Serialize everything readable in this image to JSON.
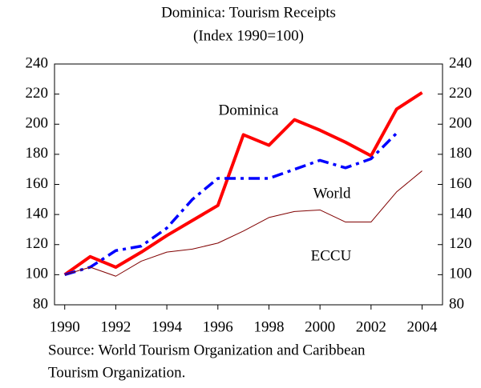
{
  "chart_data": {
    "type": "line",
    "title": "Dominica: Tourism Receipts",
    "subtitle": "(Index 1990=100)",
    "x": [
      1990,
      1991,
      1992,
      1993,
      1994,
      1995,
      1996,
      1997,
      1998,
      1999,
      2000,
      2001,
      2002,
      2003,
      2004
    ],
    "series": [
      {
        "name": "Dominica",
        "color": "#ff0000",
        "width": 4,
        "dash": "solid",
        "values": [
          100,
          112,
          105,
          115,
          126,
          136,
          146,
          193,
          186,
          203,
          196,
          188,
          179,
          210,
          221
        ]
      },
      {
        "name": "World",
        "color": "#0000ff",
        "width": 3.5,
        "dash": "dashdot",
        "values": [
          100,
          105,
          116,
          119,
          131,
          150,
          164,
          164,
          164,
          170,
          176,
          171,
          177,
          194,
          null
        ]
      },
      {
        "name": "ECCU",
        "color": "#800000",
        "width": 1,
        "dash": "solid",
        "values": [
          100,
          105,
          99,
          109,
          115,
          117,
          121,
          129,
          138,
          142,
          143,
          135,
          135,
          155,
          169
        ]
      }
    ],
    "xlim": [
      1989.6,
      2004.8
    ],
    "xticks": [
      1990,
      1992,
      1994,
      1996,
      1998,
      2000,
      2002,
      2004
    ],
    "ylim": [
      80,
      240
    ],
    "yticks": [
      80,
      100,
      120,
      140,
      160,
      180,
      200,
      220,
      240
    ],
    "y2lim": [
      80,
      240
    ],
    "y2ticks": [
      80,
      100,
      120,
      140,
      160,
      180,
      200,
      220,
      240
    ],
    "source": [
      "Source: World Tourism Organization and Caribbean",
      "Tourism Organization."
    ]
  }
}
